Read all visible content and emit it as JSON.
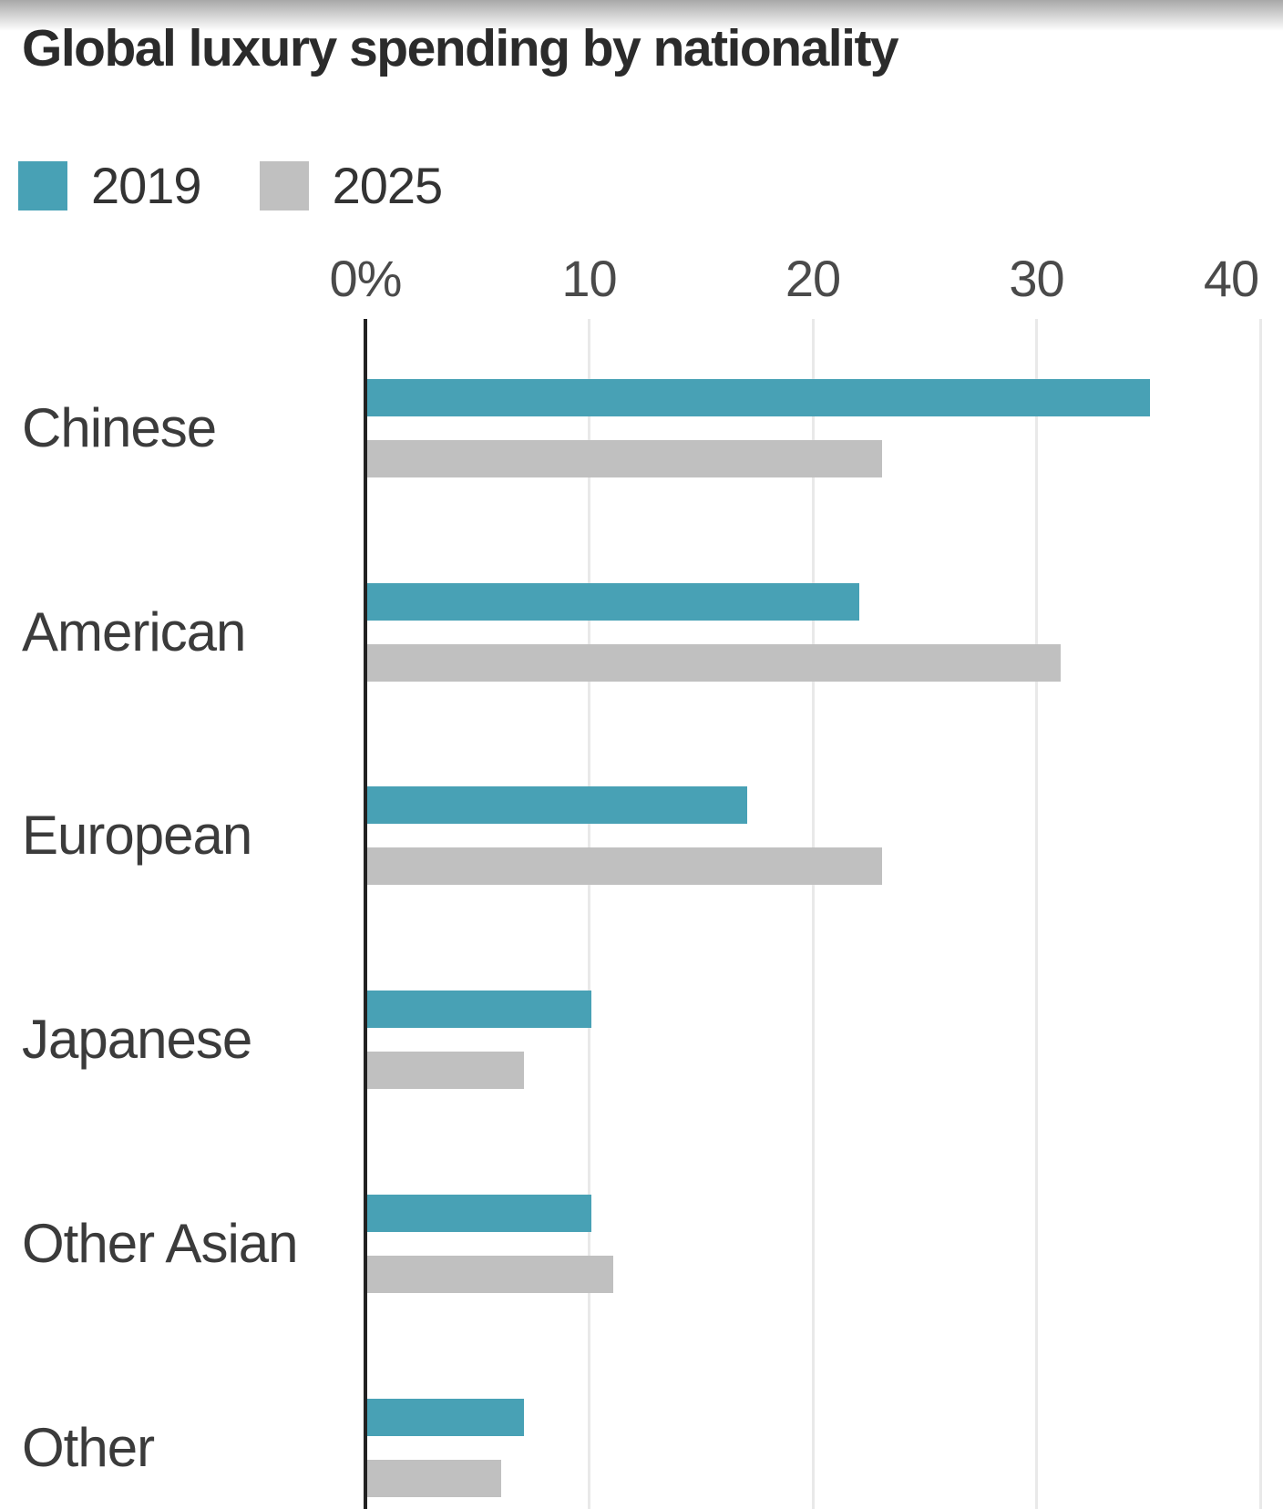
{
  "title": "Global luxury spending by nationality",
  "chart_data": {
    "type": "bar",
    "orientation": "horizontal",
    "title": "Global luxury spending by nationality",
    "categories": [
      "Chinese",
      "American",
      "European",
      "Japanese",
      "Other Asian",
      "Other"
    ],
    "series": [
      {
        "name": "2019",
        "color": "#48a1b5",
        "values": [
          35,
          22,
          17,
          10,
          10,
          7
        ]
      },
      {
        "name": "2025",
        "color": "#c0c0c0",
        "values": [
          23,
          31,
          23,
          7,
          11,
          6
        ]
      }
    ],
    "value_unit": "%",
    "xlim": [
      0,
      40
    ],
    "x_ticks": [
      {
        "label": "0%",
        "value": 0
      },
      {
        "label": "10",
        "value": 10
      },
      {
        "label": "20",
        "value": 20
      },
      {
        "label": "30",
        "value": 30
      },
      {
        "label": "40",
        "value": 40
      }
    ],
    "grid": "vertical-gridlines",
    "legend_position": "top-left",
    "ylabel": "",
    "xlabel": ""
  },
  "colors": {
    "series_2019": "#48a1b5",
    "series_2025": "#c0c0c0",
    "axis_line": "#222222",
    "gridline": "#e9e9e9",
    "title_text": "#2b2b2b",
    "category_text": "#3b3b3b",
    "tick_text": "#4a4a4a",
    "top_fade_start": "#a8a8a8",
    "background": "#ffffff"
  }
}
